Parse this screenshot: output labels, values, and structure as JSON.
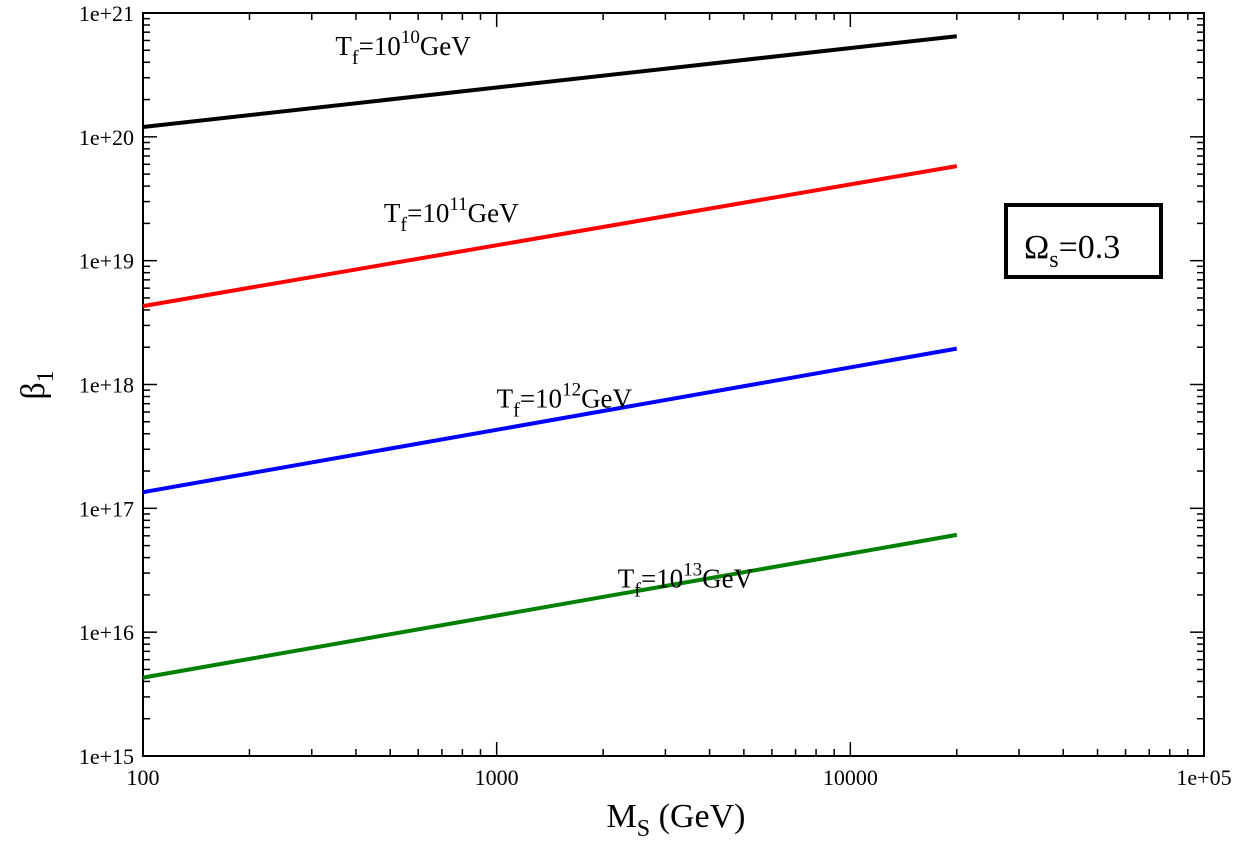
{
  "chart_data": {
    "type": "line",
    "title": "",
    "xlabel": {
      "main": "M",
      "sub": "S",
      "rest": " (GeV)"
    },
    "ylabel": {
      "main": "β",
      "sub": "1"
    },
    "x_scale": "log",
    "y_scale": "log",
    "xlim": [
      100,
      100000
    ],
    "ylim": [
      1000000000000000.0,
      1e+21
    ],
    "x_ticks": [
      {
        "value": 100,
        "label": "100"
      },
      {
        "value": 1000,
        "label": "1000"
      },
      {
        "value": 10000,
        "label": "10000"
      },
      {
        "value": 100000,
        "label": "1e+05"
      }
    ],
    "y_ticks": [
      {
        "value": 1000000000000000.0,
        "label": "1e+15"
      },
      {
        "value": 1e+16,
        "label": "1e+16"
      },
      {
        "value": 1e+17,
        "label": "1e+17"
      },
      {
        "value": 1e+18,
        "label": "1e+18"
      },
      {
        "value": 1e+19,
        "label": "1e+19"
      },
      {
        "value": 1e+20,
        "label": "1e+20"
      },
      {
        "value": 1e+21,
        "label": "1e+21"
      }
    ],
    "series": [
      {
        "name": "T_f=10^10 GeV",
        "color": "#000000",
        "x": [
          100,
          20000
        ],
        "y": [
          1.2e+20,
          6.5e+20
        ],
        "label": {
          "pre": "T",
          "sub": "f",
          "mid": "=10",
          "sup": "10",
          "post": "GeV",
          "x": 350,
          "y": 4.6e+20
        }
      },
      {
        "name": "T_f=10^11 GeV",
        "color": "#ff0000",
        "x": [
          100,
          20000
        ],
        "y": [
          4.3e+18,
          5.8e+19
        ],
        "label": {
          "pre": "T",
          "sub": "f",
          "mid": "=10",
          "sup": "11",
          "post": "GeV",
          "x": 480,
          "y": 2.05e+19
        }
      },
      {
        "name": "T_f=10^12 GeV",
        "color": "#0000ff",
        "x": [
          100,
          20000
        ],
        "y": [
          1.35e+17,
          1.95e+18
        ],
        "label": {
          "pre": "T",
          "sub": "f",
          "mid": "=10",
          "sup": "12",
          "post": "GeV",
          "x": 1000,
          "y": 6.5e+17
        }
      },
      {
        "name": "T_f=10^13 GeV",
        "color": "#008000",
        "x": [
          100,
          20000
        ],
        "y": [
          4300000000000000.0,
          6.1e+16
        ],
        "label": {
          "pre": "T",
          "sub": "f",
          "mid": "=10",
          "sup": "13",
          "post": "GeV",
          "x": 2200,
          "y": 2.3e+16
        }
      }
    ],
    "annotation": {
      "main": "Ω",
      "sub": "s",
      "rest": "=0.3",
      "position": "right"
    }
  }
}
